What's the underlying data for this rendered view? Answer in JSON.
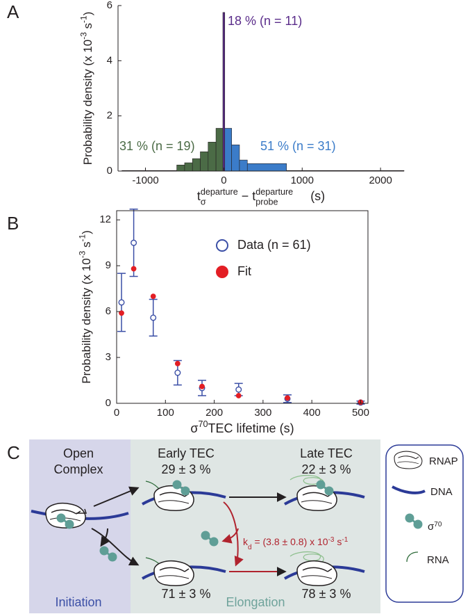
{
  "chart_data": [
    {
      "type": "histogram",
      "panel": "A",
      "ylabel": [
        {
          "text": "Probability density (x 10"
        },
        {
          "text": "-3",
          "pos": "sup"
        },
        {
          "text": " s"
        },
        {
          "text": "-1",
          "pos": "sup"
        },
        {
          "text": ")"
        }
      ],
      "xlabel": [
        {
          "text": "t"
        },
        {
          "text": "σ",
          "pos": "sub"
        },
        {
          "text": "departure",
          "pos": "sup"
        },
        {
          "text": " − t"
        },
        {
          "text": "departure",
          "pos": "sup"
        },
        {
          "text": "probe",
          "pos": "sub"
        },
        {
          "text": "     (s)"
        }
      ],
      "xlim": [
        -1350,
        2300
      ],
      "ylim": [
        0,
        6
      ],
      "xticks": [
        -1000,
        0,
        1000,
        2000
      ],
      "yticks": [
        0,
        2,
        4,
        6
      ],
      "series": [
        {
          "name": "31 % (n = 19)",
          "color": "#4b6b46",
          "bins": [
            -1300,
            -600,
            -500,
            -400,
            -300,
            -200,
            -100,
            0
          ],
          "values": [
            0.02,
            0.22,
            0.3,
            0.45,
            0.7,
            1.05,
            1.55
          ]
        },
        {
          "name": "51 % (n = 31)",
          "color": "#3b7cc9",
          "bins": [
            0,
            100,
            200,
            300,
            800,
            2300
          ],
          "values": [
            1.55,
            0.95,
            0.4,
            0.27,
            0.02
          ]
        },
        {
          "name": "18 % (n = 11)",
          "color": "#5a2c8a",
          "bins": [
            -12,
            12
          ],
          "values": [
            5.75
          ]
        }
      ]
    },
    {
      "type": "scatter",
      "panel": "B",
      "ylabel": [
        {
          "text": "Probability density (x 10"
        },
        {
          "text": "-3",
          "pos": "sup"
        },
        {
          "text": " s"
        },
        {
          "text": "-1",
          "pos": "sup"
        },
        {
          "text": ")"
        }
      ],
      "xlabel": [
        {
          "text": "σ"
        },
        {
          "text": "70",
          "pos": "sup"
        },
        {
          "text": "TEC lifetime (s)"
        }
      ],
      "xlim": [
        0,
        515
      ],
      "ylim": [
        0,
        12.6
      ],
      "xticks": [
        0,
        100,
        200,
        300,
        400,
        500
      ],
      "yticks": [
        0,
        3,
        6,
        9,
        12
      ],
      "legend": "upper right",
      "series": [
        {
          "name": "Data (n = 61)",
          "color": "#3b4fa6",
          "marker": "open-circle",
          "x": [
            10,
            35,
            75,
            125,
            175,
            250,
            350,
            500
          ],
          "values": [
            6.6,
            10.5,
            5.6,
            2.0,
            1.0,
            0.9,
            0.3,
            0.05
          ],
          "errors": [
            1.9,
            2.2,
            1.2,
            0.8,
            0.5,
            0.4,
            0.25,
            0.1
          ]
        },
        {
          "name": "Fit",
          "color": "#e31e24",
          "marker": "filled-circle",
          "x": [
            10,
            35,
            75,
            125,
            175,
            250,
            350,
            500
          ],
          "values": [
            5.9,
            8.8,
            7.0,
            2.6,
            1.1,
            0.5,
            0.35,
            0.07
          ]
        }
      ]
    }
  ],
  "diagram": {
    "panel": "C",
    "open_complex": [
      "Open",
      "Complex"
    ],
    "early_tec": "Early TEC",
    "late_tec": "Late TEC",
    "early_top": "29 ± 3 %",
    "late_top": "22 ± 3 %",
    "early_bottom": "71 ± 3 %",
    "late_bottom": "78 ± 3 %",
    "rate": [
      "k",
      "d",
      " = (3.8 ± 0.8) x 10",
      "-3",
      " s",
      "-1"
    ],
    "initiation": "Initiation",
    "elongation": "Elongation",
    "legend": {
      "rnap": "RNAP",
      "dna": "DNA",
      "sigma": [
        "σ",
        "70"
      ],
      "rna": "RNA"
    }
  }
}
